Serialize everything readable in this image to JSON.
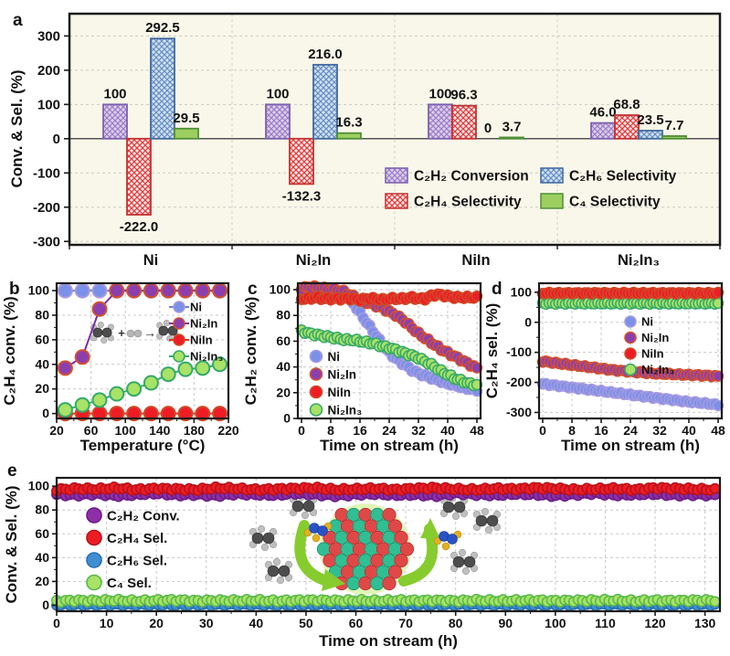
{
  "chart_data": {
    "a": {
      "type": "bar",
      "panel_label": "a",
      "ylabel": "Conv. & Sel. (%)",
      "ylim": [
        -310,
        365
      ],
      "yticks": [
        -300,
        -200,
        -100,
        0,
        100,
        200,
        300
      ],
      "categories": [
        "Ni",
        "Ni₂In",
        "NiIn",
        "Ni₂In₃"
      ],
      "plot_bg": "#f9f7e9",
      "series": [
        {
          "name": "C₂H₂ Conversion",
          "pattern": "hatch",
          "fill": "#dccfec",
          "hatch": "#9d7fc6",
          "border": "#7e5fae",
          "values": [
            100,
            100,
            100,
            46.0
          ],
          "labels": [
            "100",
            "100",
            "100",
            "46.0"
          ]
        },
        {
          "name": "C₂H₄ Selectivity",
          "pattern": "hatch",
          "fill": "#fbe9e9",
          "hatch": "#e23c3c",
          "border": "#c23232",
          "values": [
            -222.0,
            -132.3,
            96.3,
            68.8
          ],
          "labels": [
            "-222.0",
            "-132.3",
            "96.3",
            "68.8"
          ]
        },
        {
          "name": "C₂H₆ Selectivity",
          "pattern": "hatch",
          "fill": "#d4e1f1",
          "hatch": "#6790c5",
          "border": "#41699f",
          "values": [
            292.5,
            216.0,
            0,
            23.5
          ],
          "labels": [
            "292.5",
            "216.0",
            "0",
            "23.5"
          ]
        },
        {
          "name": "C₄ Selectivity",
          "pattern": "solid",
          "fill": "#9ccf60",
          "hatch": "#9ccf60",
          "border": "#4f8f38",
          "values": [
            29.5,
            16.3,
            3.7,
            7.7
          ],
          "labels": [
            "29.5",
            "16.3",
            "3.7",
            "7.7"
          ]
        }
      ],
      "legend_columns": [
        [
          0,
          1
        ],
        [
          2,
          3
        ]
      ]
    },
    "b": {
      "type": "scatter-line",
      "panel_label": "b",
      "xlabel": "Temperature (°C)",
      "ylabel": "C₂H₄ conv. (%)",
      "xlim": [
        20,
        220
      ],
      "ylim": [
        -4,
        106
      ],
      "xticks": [
        20,
        60,
        100,
        140,
        180,
        220
      ],
      "yticks": [
        0,
        20,
        40,
        60,
        80,
        100
      ],
      "xminor": [
        40,
        80,
        120,
        160,
        200
      ],
      "yminor": [
        10,
        30,
        50,
        70,
        90
      ],
      "x": [
        30,
        50,
        70,
        90,
        110,
        130,
        150,
        170,
        190,
        210
      ],
      "series": [
        {
          "name": "Ni",
          "fill": "#7b90e8",
          "edge": "#a79ae0",
          "line": "#6b82e0",
          "y": [
            100,
            100,
            100,
            100,
            100,
            100,
            100,
            100,
            100,
            100
          ]
        },
        {
          "name": "Ni₂In",
          "fill": "#8b3fae",
          "edge": "#d4502e",
          "line": "#7b2f9e",
          "y": [
            37,
            46,
            85,
            100,
            100,
            100,
            100,
            100,
            100,
            100
          ]
        },
        {
          "name": "NiIn",
          "fill": "#ee1c25",
          "edge": "#cf4a28",
          "line": "#e0301e",
          "y": [
            0,
            0,
            0,
            0,
            0,
            0,
            0,
            0,
            0,
            0
          ]
        },
        {
          "name": "Ni₂In₃",
          "fill": "#a8e266",
          "edge": "#36a96a",
          "line": "#2fae6e",
          "y": [
            3,
            7,
            11,
            16,
            20,
            25,
            32,
            36,
            37,
            40
          ]
        }
      ],
      "draw_order": [
        2,
        3,
        0,
        1
      ],
      "illustration": {
        "plus": "+",
        "arrow": "→"
      }
    },
    "c": {
      "type": "scatter",
      "panel_label": "c",
      "xlabel": "Time on stream (h)",
      "ylabel": "C₂H₂ conv. (%)",
      "xlim": [
        -1,
        49
      ],
      "ylim": [
        0,
        105
      ],
      "xticks": [
        0,
        8,
        16,
        24,
        32,
        40,
        48
      ],
      "yticks": [
        0,
        20,
        40,
        60,
        80,
        100
      ],
      "xminor": [
        4,
        12,
        20,
        28,
        36,
        44
      ],
      "yminor": [
        10,
        30,
        50,
        70,
        90
      ],
      "x": [
        0,
        2,
        4,
        6,
        8,
        10,
        12,
        14,
        16,
        18,
        20,
        22,
        24,
        26,
        28,
        30,
        32,
        34,
        36,
        38,
        40,
        42,
        44,
        46,
        48
      ],
      "series": [
        {
          "name": "Ni",
          "fill": "#7b90e8",
          "edge": "#a79ae0",
          "y": [
            100,
            100,
            100,
            100,
            100,
            99,
            96,
            90,
            82,
            74,
            66,
            58,
            51,
            46,
            42,
            38,
            35,
            33,
            31,
            29,
            27,
            26,
            24,
            23,
            22
          ]
        },
        {
          "name": "Ni₂In",
          "fill": "#8b3fae",
          "edge": "#d4502e",
          "y": [
            101,
            102,
            102,
            101,
            100,
            100,
            98,
            95,
            92,
            90,
            88,
            86,
            83,
            80,
            76,
            71,
            66,
            62,
            58,
            54,
            51,
            48,
            45,
            42,
            39
          ]
        },
        {
          "name": "NiIn",
          "fill": "#ee1c25",
          "edge": "#cf4a28",
          "y": [
            93,
            93,
            94,
            93,
            93,
            93,
            93,
            93,
            92,
            93,
            93,
            92,
            93,
            93,
            93,
            94,
            93,
            93,
            96,
            96,
            95,
            94,
            94,
            94,
            94
          ]
        },
        {
          "name": "Ni₂In₃",
          "fill": "#a8e266",
          "edge": "#36a96a",
          "y": [
            68,
            66,
            65,
            64,
            63,
            62,
            61,
            61,
            60,
            59,
            58,
            56,
            55,
            53,
            51,
            49,
            47,
            44,
            41,
            37,
            34,
            31,
            29,
            27,
            26
          ]
        }
      ],
      "draw_order": [
        0,
        1,
        3,
        2
      ],
      "dense": 55,
      "jitter": 1.0
    },
    "d": {
      "type": "scatter",
      "panel_label": "d",
      "xlabel": "Time on stream (h)",
      "ylabel": "C₂H₄ sel. (%)",
      "xlim": [
        -1,
        49
      ],
      "ylim": [
        -320,
        130
      ],
      "xticks": [
        0,
        8,
        16,
        24,
        32,
        40,
        48
      ],
      "yticks": [
        -300,
        -200,
        -100,
        0,
        100
      ],
      "xminor": [
        4,
        12,
        20,
        28,
        36,
        44
      ],
      "yminor": [
        -250,
        -150,
        -50,
        50
      ],
      "x": [
        0,
        2,
        4,
        6,
        8,
        10,
        12,
        14,
        16,
        18,
        20,
        22,
        24,
        26,
        28,
        30,
        32,
        34,
        36,
        38,
        40,
        42,
        44,
        46,
        48
      ],
      "series": [
        {
          "name": "Ni",
          "fill": "#7b90e8",
          "edge": "#a79ae0",
          "y": [
            -205,
            -208,
            -211,
            -214,
            -217,
            -220,
            -223,
            -226,
            -229,
            -232,
            -235,
            -238,
            -241,
            -244,
            -247,
            -250,
            -253,
            -256,
            -259,
            -262,
            -265,
            -267,
            -269,
            -272,
            -275
          ]
        },
        {
          "name": "Ni₂In",
          "fill": "#8b3fae",
          "edge": "#d4502e",
          "y": [
            -130,
            -133,
            -136,
            -139,
            -142,
            -145,
            -148,
            -151,
            -154,
            -157,
            -160,
            -162,
            -164,
            -166,
            -168,
            -170,
            -171,
            -172,
            -173,
            -174,
            -175,
            -176,
            -177,
            -178,
            -180
          ]
        },
        {
          "name": "NiIn",
          "fill": "#ee1c25",
          "edge": "#cf4a28",
          "y": [
            97,
            97,
            97,
            97,
            97,
            97,
            97,
            97,
            97,
            97,
            97,
            97,
            97,
            97,
            97,
            97,
            97,
            97,
            97,
            97,
            97,
            97,
            97,
            97,
            97
          ]
        },
        {
          "name": "Ni₂In₃",
          "fill": "#a8e266",
          "edge": "#36a96a",
          "y": [
            63,
            63,
            63,
            63,
            63,
            63,
            63,
            63,
            63,
            63,
            63,
            63,
            63,
            63,
            63,
            63,
            63,
            63,
            63,
            63,
            63,
            63,
            63,
            63,
            63
          ]
        }
      ],
      "draw_order": [
        0,
        1,
        3,
        2
      ],
      "dense": 55,
      "jitter": 2.5
    },
    "e": {
      "type": "scatter",
      "panel_label": "e",
      "xlabel": "Time on stream (h)",
      "ylabel": "Conv. & Sel. (%)",
      "xlim": [
        0,
        133
      ],
      "ylim": [
        -5,
        107
      ],
      "xticks": [
        0,
        10,
        20,
        30,
        40,
        50,
        60,
        70,
        80,
        90,
        100,
        110,
        120,
        130
      ],
      "yticks": [
        0,
        20,
        40,
        60,
        80,
        100
      ],
      "xminor": [
        5,
        15,
        25,
        35,
        45,
        55,
        65,
        75,
        85,
        95,
        105,
        115,
        125
      ],
      "yminor": [
        10,
        30,
        50,
        70,
        90
      ],
      "x": [
        0,
        4,
        8,
        12,
        16,
        20,
        24,
        28,
        32,
        36,
        40,
        44,
        48,
        52,
        56,
        60,
        64,
        68,
        72,
        76,
        80,
        84,
        88,
        92,
        96,
        100,
        104,
        108,
        112,
        116,
        120,
        124,
        128,
        132
      ],
      "series": [
        {
          "name": "C₂H₂ Conv.",
          "fill": "#8e2fa8",
          "edge": "#6a1b86",
          "y": [
            93,
            92.5,
            93.5,
            92,
            93,
            94,
            92.5,
            93,
            92,
            93.5,
            93,
            92.5,
            94,
            93,
            92,
            93,
            93.5,
            92.5,
            93,
            92,
            94,
            93,
            92.5,
            93.5,
            93,
            92,
            93,
            94,
            92.5,
            93,
            93.5,
            92.5,
            93,
            92.5
          ]
        },
        {
          "name": "C₂H₄ Sel.",
          "fill": "#ed1c24",
          "edge": "#b8121a",
          "y": [
            97,
            98,
            97.5,
            98.5,
            97,
            98,
            97.5,
            97,
            98.5,
            98,
            97,
            97.5,
            98,
            98.5,
            97,
            97.5,
            98,
            97,
            98,
            98.5,
            97.5,
            97,
            98,
            97.5,
            98.5,
            98,
            97,
            97.5,
            98,
            97,
            98.5,
            98,
            97.5,
            97
          ]
        },
        {
          "name": "C₂H₆ Sel.",
          "fill": "#3f8fd2",
          "edge": "#2a6faf",
          "y": [
            0.5,
            0.5,
            0.5,
            0.5,
            0.5,
            0.5,
            0.5,
            0.5,
            0.5,
            0.5,
            0.5,
            0.5,
            0.5,
            0.5,
            0.5,
            0.5,
            0.5,
            0.5,
            0.5,
            0.5,
            0.5,
            0.5,
            0.5,
            0.5,
            0.5,
            0.5,
            0.5,
            0.5,
            0.5,
            0.5,
            0.5,
            0.5,
            0.5,
            0.5
          ]
        },
        {
          "name": "C₄ Sel.",
          "fill": "#a8e266",
          "edge": "#57b84a",
          "y": [
            3.5,
            4,
            3.8,
            4.2,
            3.6,
            4,
            4.3,
            3.7,
            4,
            3.9,
            4.1,
            3.6,
            4,
            4.2,
            3.8,
            4,
            3.7,
            4.1,
            3.9,
            4,
            3.6,
            4.2,
            3.8,
            4,
            4.1,
            3.7,
            3.9,
            4,
            4.2,
            3.6,
            4,
            3.8,
            4.1,
            3.9
          ]
        }
      ],
      "draw_order": [
        2,
        3,
        0,
        1
      ],
      "dense": 150,
      "jitter": 1.0
    }
  }
}
